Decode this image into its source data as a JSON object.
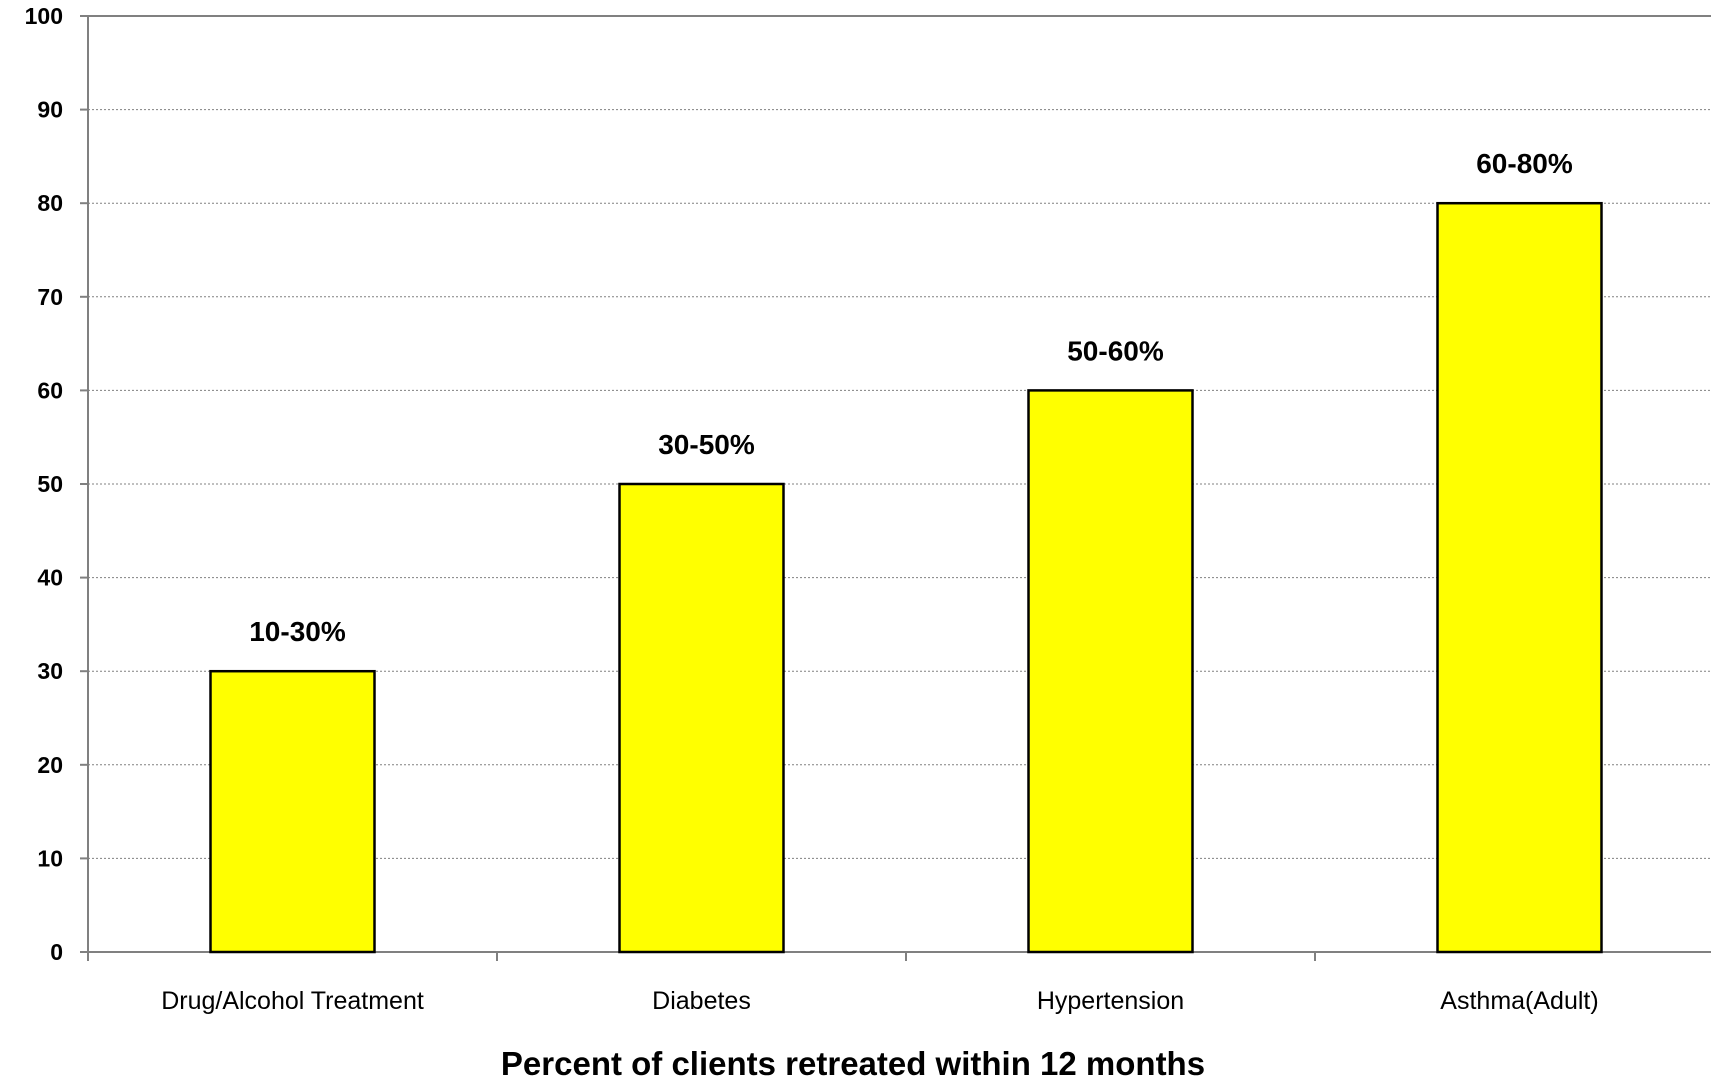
{
  "chart_data": {
    "type": "bar",
    "title": "",
    "xlabel": "Percent of clients retreated within 12 months",
    "ylabel": "",
    "categories": [
      "Drug/Alcohol Treatment",
      "Diabetes",
      "Hypertension",
      "Asthma(Adult)"
    ],
    "values": [
      30,
      50,
      60,
      80
    ],
    "data_labels": [
      "10-30%",
      "30-50%",
      "50-60%",
      "60-80%"
    ],
    "ylim": [
      0,
      100
    ],
    "yticks": [
      0,
      10,
      20,
      30,
      40,
      50,
      60,
      70,
      80,
      90,
      100
    ],
    "grid": true,
    "legend": "none",
    "colors": {
      "bar_fill": "#ffff00",
      "bar_stroke": "#000000",
      "grid": "#808080",
      "axis": "#808080"
    }
  }
}
